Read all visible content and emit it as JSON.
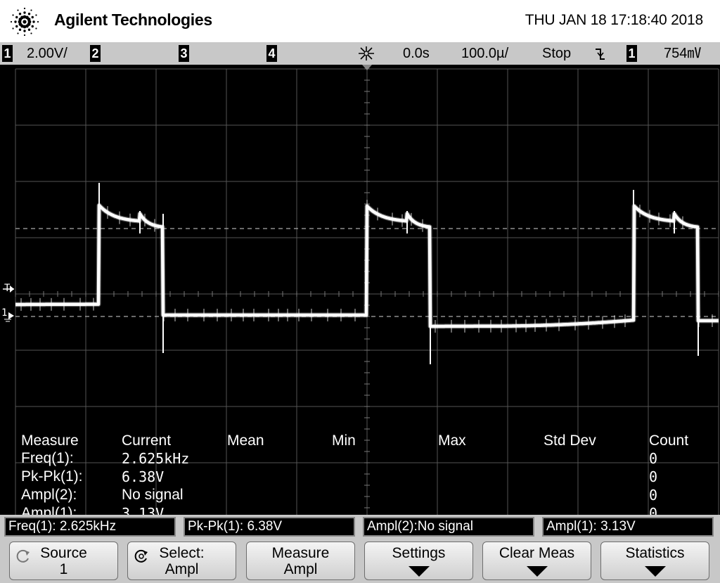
{
  "header": {
    "brand": "Agilent Technologies",
    "timestamp": "THU JAN 18 17:18:40 2018"
  },
  "status_bar": {
    "channels": [
      {
        "num": "1",
        "scale": "2.00V/"
      },
      {
        "num": "2",
        "scale": ""
      },
      {
        "num": "3",
        "scale": ""
      },
      {
        "num": "4",
        "scale": ""
      }
    ],
    "delay": "0.0s",
    "timebase": "100.0µ/",
    "run_state": "Stop",
    "trigger_slope_icon": "falling-edge-icon",
    "trigger_source": "1",
    "trigger_level": "754㎷"
  },
  "screen": {
    "trigger_marker": "T",
    "channel1_marker": "1",
    "trace_color": "#ffffff"
  },
  "measurements": {
    "headers": [
      "Measure",
      "Current",
      "Mean",
      "Min",
      "Max",
      "Std Dev",
      "Count"
    ],
    "rows": [
      {
        "name": "Freq(1):",
        "current": "2.625kHz",
        "count": "0"
      },
      {
        "name": "Pk-Pk(1):",
        "current": "6.38V",
        "count": "0"
      },
      {
        "name": "Ampl(2):",
        "current": "No signal",
        "count": "0"
      },
      {
        "name": "Ampl(1):",
        "current": "3.13V",
        "count": "0"
      }
    ]
  },
  "readouts": [
    "Freq(1): 2.625kHz",
    "Pk-Pk(1): 6.38V",
    "Ampl(2):No signal",
    "Ampl(1): 3.13V"
  ],
  "softkeys": [
    {
      "line1": "Source",
      "line2": "1",
      "icon": "rotate-knob-icon"
    },
    {
      "line1": "Select:",
      "line2": "Ampl",
      "icon": "entry-knob-icon"
    },
    {
      "line1": "Measure",
      "line2": "Ampl"
    },
    {
      "line1": "Settings",
      "line2": "",
      "icon": "down-arrow-icon"
    },
    {
      "line1": "Clear Meas",
      "line2": "",
      "icon": "down-arrow-icon"
    },
    {
      "line1": "Statistics",
      "line2": "",
      "icon": "down-arrow-icon"
    }
  ]
}
